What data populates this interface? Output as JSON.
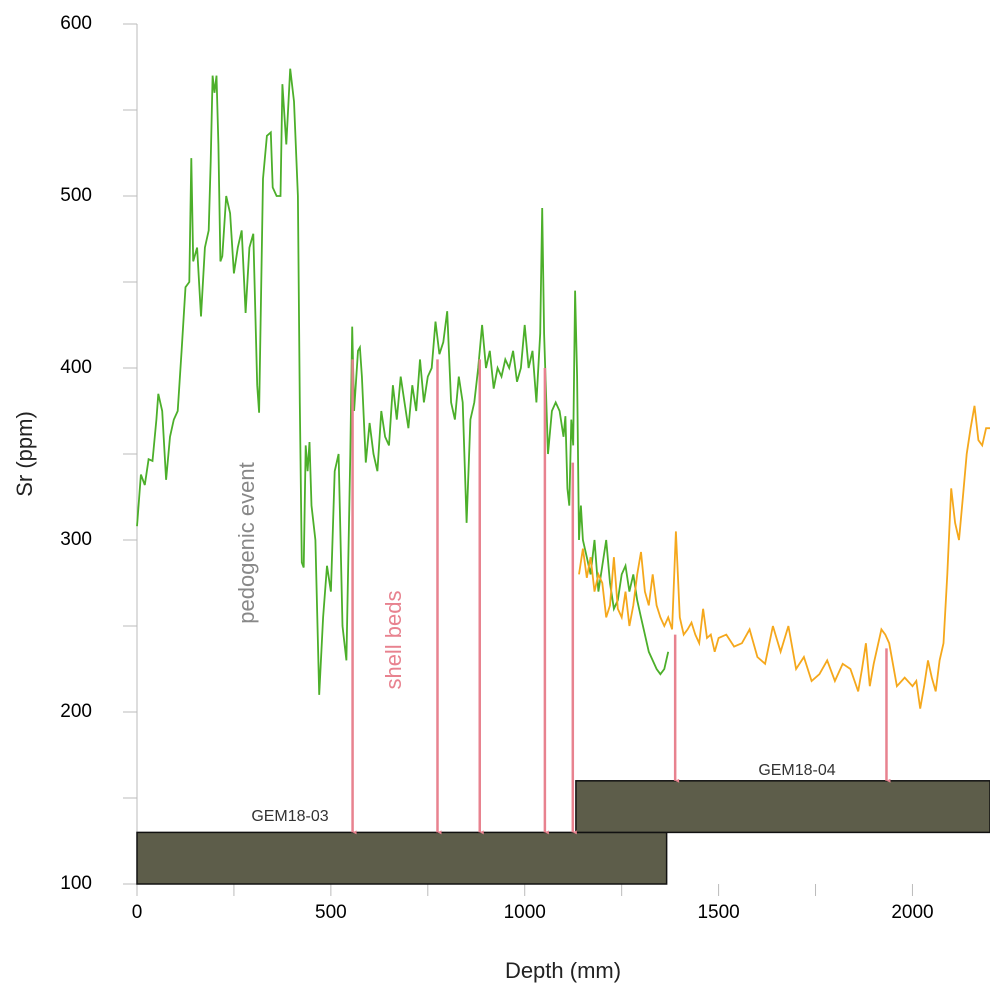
{
  "chart_data": {
    "type": "line",
    "x_label": "Depth (mm)",
    "y_label": "Sr (ppm)",
    "xlim": [
      0,
      2200
    ],
    "ylim": [
      100,
      600
    ],
    "xticks": [
      0,
      500,
      1000,
      1500,
      2000
    ],
    "xminor": [
      250,
      750,
      1250,
      1750
    ],
    "yticks": [
      100,
      200,
      300,
      400,
      500,
      600
    ],
    "yminor": [
      150,
      250,
      350,
      450,
      550
    ],
    "annotations": [
      "pedogenic event",
      "shell beds"
    ],
    "cores": [
      {
        "label": "GEM18-03",
        "x": [
          0,
          1366
        ],
        "y": [
          100,
          130
        ]
      },
      {
        "label": "GEM18-04",
        "x": [
          1132,
          2200
        ],
        "y": [
          130,
          160
        ]
      }
    ],
    "arrows": [
      {
        "x": 556,
        "y": [
          405,
          130
        ]
      },
      {
        "x": 775,
        "y": [
          405,
          130
        ]
      },
      {
        "x": 884,
        "y": [
          405,
          130
        ]
      },
      {
        "x": 1052,
        "y": [
          400,
          130
        ]
      },
      {
        "x": 1124,
        "y": [
          345,
          130
        ]
      },
      {
        "x": 1388,
        "y": [
          245,
          160
        ]
      },
      {
        "x": 1933,
        "y": [
          237,
          160
        ]
      }
    ],
    "series": [
      {
        "name": "GEM18-03",
        "color": "#4caf2a",
        "x": [
          0,
          10,
          20,
          30,
          40,
          50,
          55,
          65,
          75,
          85,
          95,
          105,
          115,
          125,
          135,
          140,
          145,
          155,
          165,
          175,
          185,
          190,
          195,
          200,
          205,
          210,
          215,
          220,
          230,
          240,
          250,
          260,
          270,
          280,
          290,
          300,
          310,
          315,
          325,
          335,
          345,
          350,
          360,
          370,
          375,
          385,
          395,
          405,
          415,
          420,
          425,
          430,
          435,
          440,
          445,
          450,
          460,
          470,
          480,
          490,
          500,
          510,
          520,
          530,
          540,
          550,
          555,
          560,
          570,
          575,
          580,
          590,
          600,
          610,
          620,
          630,
          640,
          650,
          660,
          670,
          680,
          690,
          700,
          710,
          720,
          730,
          740,
          750,
          760,
          770,
          780,
          790,
          800,
          810,
          820,
          830,
          840,
          850,
          860,
          870,
          880,
          890,
          900,
          910,
          920,
          930,
          940,
          950,
          960,
          970,
          980,
          990,
          1000,
          1010,
          1020,
          1030,
          1040,
          1045,
          1050,
          1060,
          1070,
          1080,
          1090,
          1100,
          1105,
          1110,
          1115,
          1120,
          1125,
          1130,
          1135,
          1140,
          1145,
          1150,
          1160,
          1170,
          1180,
          1190,
          1200,
          1210,
          1220,
          1230,
          1240,
          1250,
          1260,
          1270,
          1280,
          1290,
          1300,
          1310,
          1320,
          1330,
          1340,
          1350,
          1360,
          1370
        ],
        "values": [
          308,
          338,
          332,
          347,
          346,
          370,
          385,
          375,
          335,
          360,
          370,
          375,
          410,
          447,
          450,
          522,
          462,
          470,
          430,
          470,
          480,
          520,
          570,
          560,
          570,
          530,
          462,
          465,
          500,
          490,
          455,
          470,
          480,
          432,
          470,
          478,
          390,
          374,
          510,
          535,
          537,
          505,
          500,
          500,
          565,
          530,
          574,
          555,
          500,
          380,
          287,
          284,
          355,
          340,
          357,
          320,
          300,
          210,
          255,
          285,
          270,
          340,
          350,
          250,
          230,
          350,
          424,
          375,
          410,
          412,
          395,
          345,
          368,
          350,
          340,
          375,
          360,
          355,
          390,
          370,
          395,
          380,
          365,
          390,
          375,
          405,
          380,
          395,
          400,
          427,
          408,
          415,
          433,
          380,
          370,
          395,
          380,
          310,
          370,
          380,
          400,
          425,
          400,
          410,
          388,
          400,
          395,
          405,
          400,
          410,
          392,
          400,
          425,
          400,
          410,
          380,
          420,
          493,
          420,
          350,
          375,
          380,
          375,
          360,
          372,
          330,
          320,
          370,
          355,
          445,
          395,
          300,
          320,
          300,
          290,
          280,
          300,
          270,
          285,
          300,
          275,
          260,
          265,
          280,
          285,
          270,
          280,
          265,
          255,
          245,
          235,
          230,
          225,
          222,
          225,
          235
        ]
      },
      {
        "name": "GEM18-04",
        "color": "#f5a81c",
        "x": [
          1140,
          1150,
          1160,
          1170,
          1180,
          1190,
          1200,
          1210,
          1220,
          1230,
          1240,
          1250,
          1260,
          1270,
          1280,
          1290,
          1300,
          1310,
          1320,
          1330,
          1340,
          1350,
          1360,
          1370,
          1380,
          1390,
          1400,
          1410,
          1420,
          1430,
          1440,
          1450,
          1460,
          1470,
          1480,
          1490,
          1500,
          1520,
          1540,
          1560,
          1580,
          1600,
          1620,
          1640,
          1660,
          1680,
          1700,
          1720,
          1740,
          1760,
          1780,
          1800,
          1820,
          1840,
          1860,
          1870,
          1880,
          1890,
          1900,
          1920,
          1930,
          1940,
          1960,
          1980,
          2000,
          2010,
          2020,
          2030,
          2040,
          2050,
          2060,
          2070,
          2080,
          2090,
          2100,
          2110,
          2120,
          2130,
          2140,
          2150,
          2160,
          2170,
          2180,
          2190,
          2200
        ],
        "values": [
          280,
          295,
          278,
          290,
          270,
          280,
          275,
          255,
          262,
          290,
          260,
          255,
          270,
          250,
          262,
          280,
          293,
          270,
          262,
          280,
          262,
          255,
          250,
          255,
          248,
          305,
          255,
          245,
          248,
          252,
          245,
          240,
          260,
          243,
          245,
          235,
          243,
          245,
          238,
          240,
          248,
          232,
          228,
          250,
          235,
          250,
          225,
          232,
          218,
          222,
          230,
          218,
          228,
          225,
          212,
          225,
          240,
          215,
          228,
          248,
          245,
          240,
          215,
          220,
          215,
          218,
          202,
          215,
          230,
          220,
          212,
          230,
          240,
          280,
          330,
          310,
          300,
          325,
          350,
          365,
          378,
          358,
          355,
          365,
          365
        ]
      }
    ]
  }
}
